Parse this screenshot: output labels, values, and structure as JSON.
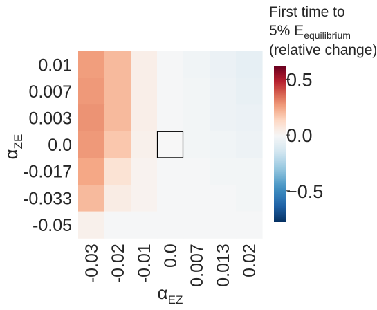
{
  "chart_data": {
    "type": "heatmap",
    "title_lines": [
      "First time to",
      "5% E",
      "(relative change)"
    ],
    "title_subscript": "equilibrium",
    "xlabel": "α",
    "xlabel_sub": "EZ",
    "ylabel": "α",
    "ylabel_sub": "ZE",
    "x_categories": [
      "-0.03",
      "-0.02",
      "-0.01",
      "0.0",
      "0.007",
      "0.013",
      "0.02"
    ],
    "y_categories": [
      "0.01",
      "0.007",
      "0.003",
      "0.0",
      "-0.017",
      "-0.033",
      "-0.05"
    ],
    "values": [
      [
        0.26,
        0.2,
        0.04,
        -0.01,
        -0.03,
        -0.05,
        -0.07
      ],
      [
        0.27,
        0.2,
        0.04,
        -0.01,
        -0.02,
        -0.04,
        -0.06
      ],
      [
        0.28,
        0.2,
        0.04,
        -0.01,
        -0.02,
        -0.04,
        -0.05
      ],
      [
        0.27,
        0.17,
        0.03,
        0.0,
        -0.02,
        -0.03,
        -0.04
      ],
      [
        0.24,
        0.09,
        0.02,
        -0.01,
        -0.01,
        -0.02,
        -0.02
      ],
      [
        0.2,
        0.05,
        0.02,
        -0.01,
        -0.01,
        -0.01,
        -0.02
      ],
      [
        0.03,
        -0.01,
        -0.01,
        -0.01,
        -0.01,
        -0.01,
        -0.01
      ]
    ],
    "highlight_cell": {
      "row": "0.0",
      "col": "0.0"
    },
    "colorbar": {
      "colormap": "RdBu_r",
      "vmin": -0.78,
      "vmax": 0.62,
      "center": 0.0,
      "ticks": [
        0.5,
        0.0,
        -0.5
      ],
      "tick_labels": [
        "0.5",
        "0.0",
        "−0.5"
      ]
    },
    "grid": false
  }
}
